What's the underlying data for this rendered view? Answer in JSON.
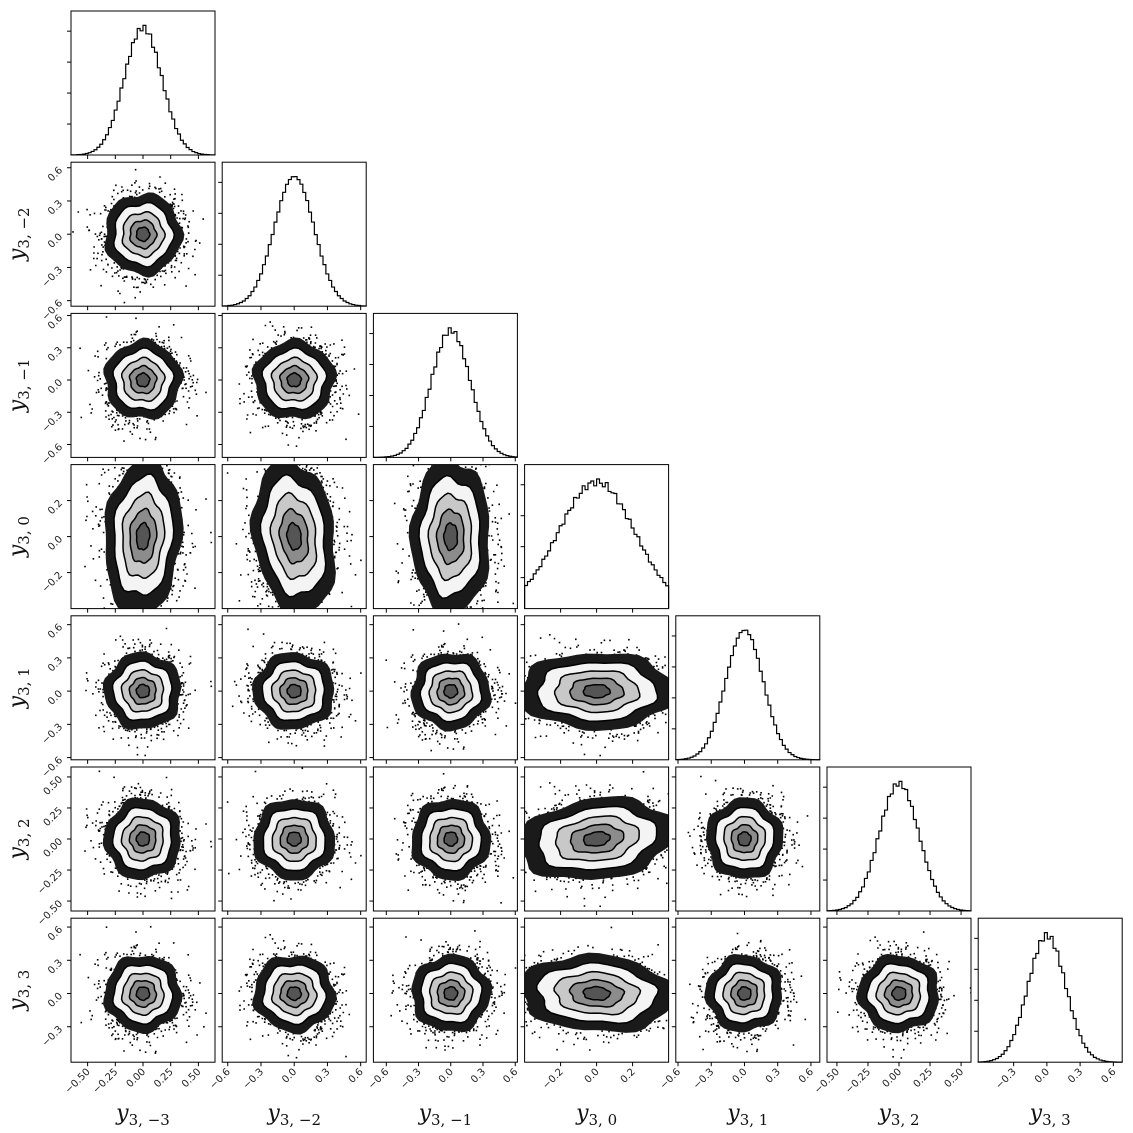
{
  "chart_data": {
    "type": "corner",
    "title": "",
    "variables": [
      {
        "base": "y",
        "sub": "3, −3",
        "range": [
          -0.65,
          0.65
        ],
        "ticks": [
          -0.5,
          -0.25,
          0.0,
          0.25,
          0.5
        ],
        "tick_labels": [
          "−0.50",
          "−0.25",
          "0.00",
          "0.25",
          "0.50"
        ],
        "sigma": 0.17,
        "shape": "gauss"
      },
      {
        "base": "y",
        "sub": "3, −2",
        "range": [
          -0.65,
          0.65
        ],
        "ticks": [
          -0.6,
          -0.3,
          0.0,
          0.3,
          0.6
        ],
        "tick_labels": [
          "−0.6",
          "−0.3",
          "0.0",
          "0.3",
          "0.6"
        ],
        "sigma": 0.18,
        "shape": "gauss"
      },
      {
        "base": "y",
        "sub": "3, −1",
        "range": [
          -0.72,
          0.62
        ],
        "ticks": [
          -0.6,
          -0.3,
          0.0,
          0.3,
          0.6
        ],
        "tick_labels": [
          "−0.6",
          "−0.3",
          "0.0",
          "0.3",
          "0.6"
        ],
        "sigma": 0.18,
        "shape": "gauss"
      },
      {
        "base": "y",
        "sub": "3, 0",
        "range": [
          -0.4,
          0.4
        ],
        "ticks": [
          -0.2,
          0.0,
          0.2
        ],
        "tick_labels": [
          "−0.2",
          "0.0",
          "0.2"
        ],
        "sigma": 0.17,
        "shape": "flat"
      },
      {
        "base": "y",
        "sub": "3, 1",
        "range": [
          -0.62,
          0.68
        ],
        "ticks": [
          -0.6,
          -0.3,
          0.0,
          0.3,
          0.6
        ],
        "tick_labels": [
          "−0.6",
          "−0.3",
          "0.0",
          "0.3",
          "0.6"
        ],
        "sigma": 0.17,
        "shape": "gauss"
      },
      {
        "base": "y",
        "sub": "3, 2",
        "range": [
          -0.58,
          0.58
        ],
        "ticks": [
          -0.5,
          -0.25,
          0.0,
          0.25,
          0.5
        ],
        "tick_labels": [
          "−0.50",
          "−0.25",
          "0.00",
          "0.25",
          "0.50"
        ],
        "sigma": 0.16,
        "shape": "gauss"
      },
      {
        "base": "y",
        "sub": "3, 3",
        "range": [
          -0.62,
          0.68
        ],
        "ticks": [
          -0.3,
          0.0,
          0.3,
          0.6
        ],
        "tick_labels": [
          "−0.3",
          "0.0",
          "0.3",
          "0.6"
        ],
        "sigma": 0.17,
        "shape": "gauss"
      }
    ],
    "histograms": {
      "bins": 50,
      "style": "step",
      "peaks": [
        0.0,
        0.0,
        0.0,
        0.0,
        0.0,
        0.0,
        0.0
      ]
    },
    "pairs": {
      "contour_levels": 4,
      "point_color": "#000000",
      "fill_color": "#555555"
    },
    "colors": {
      "line": "#000000",
      "frame": "#000000",
      "background": "#ffffff"
    }
  }
}
